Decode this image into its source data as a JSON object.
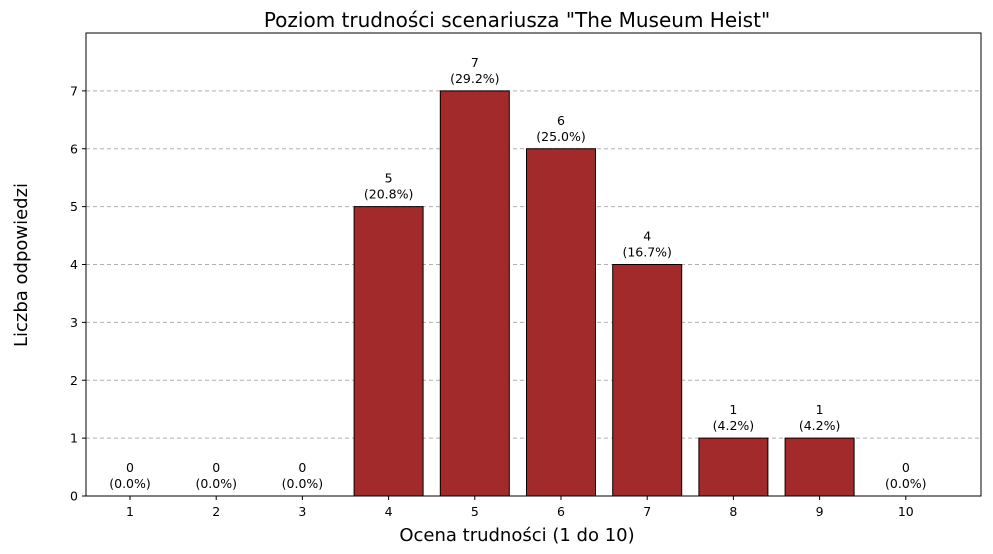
{
  "chart_data": {
    "type": "bar",
    "title": "Poziom trudności scenariusza \"The Museum Heist\"",
    "xlabel": "Ocena trudności (1 do 10)",
    "ylabel": "Liczba odpowiedzi",
    "categories": [
      "1",
      "2",
      "3",
      "4",
      "5",
      "6",
      "7",
      "8",
      "9",
      "10"
    ],
    "values": [
      0,
      0,
      0,
      5,
      7,
      6,
      4,
      1,
      1,
      0
    ],
    "percent_labels": [
      "(0.0%)",
      "(0.0%)",
      "(0.0%)",
      "(20.8%)",
      "(29.2%)",
      "(25.0%)",
      "(16.7%)",
      "(4.2%)",
      "(4.2%)",
      "(0.0%)"
    ],
    "yticks": [
      0,
      1,
      2,
      3,
      4,
      5,
      6,
      7
    ],
    "ylim": [
      0,
      8
    ],
    "grid": "y-dashed",
    "colors": {
      "bar": "#a22a2a",
      "edge": "#000000",
      "grid": "#b0b0b0"
    }
  }
}
